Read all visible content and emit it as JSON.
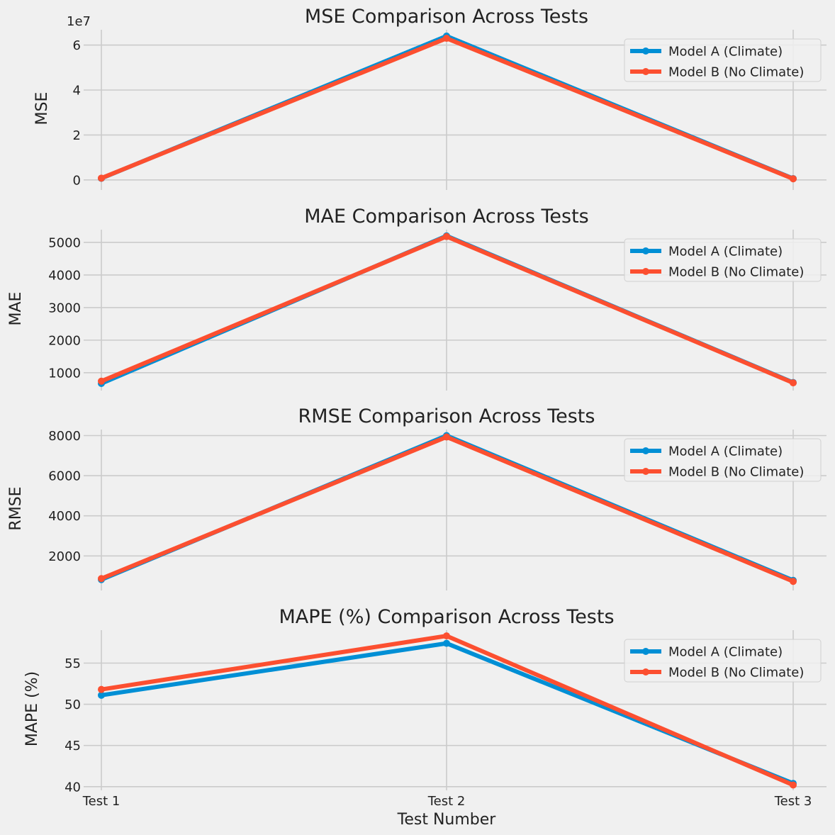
{
  "chart_data": [
    {
      "type": "line",
      "title": "MSE Comparison Across Tests",
      "ylabel": "MSE",
      "xlabel": "",
      "x": [
        "Test 1",
        "Test 2",
        "Test 3"
      ],
      "offset_label": "1e7",
      "yticks": [
        0,
        20000000,
        40000000,
        60000000
      ],
      "yticklabels": [
        "0",
        "2",
        "4",
        "6"
      ],
      "ylim": [
        -3200000,
        66800000
      ],
      "series": [
        {
          "name": "Model A (Climate)",
          "color": "#008fd5",
          "values": [
            700000,
            64000000,
            600000
          ]
        },
        {
          "name": "Model B (No Climate)",
          "color": "#fc4f30",
          "values": [
            800000,
            63000000,
            500000
          ]
        }
      ],
      "legend": "top-right",
      "grid": true
    },
    {
      "type": "line",
      "title": "MAE Comparison Across Tests",
      "ylabel": "MAE",
      "xlabel": "",
      "x": [
        "Test 1",
        "Test 2",
        "Test 3"
      ],
      "yticks": [
        1000,
        2000,
        3000,
        4000,
        5000
      ],
      "yticklabels": [
        "1000",
        "2000",
        "3000",
        "4000",
        "5000"
      ],
      "ylim": [
        540,
        5390
      ],
      "series": [
        {
          "name": "Model A (Climate)",
          "color": "#008fd5",
          "values": [
            670,
            5200,
            700
          ]
        },
        {
          "name": "Model B (No Climate)",
          "color": "#fc4f30",
          "values": [
            740,
            5180,
            690
          ]
        }
      ],
      "legend": "top-right",
      "grid": true
    },
    {
      "type": "line",
      "title": "RMSE Comparison Across Tests",
      "ylabel": "RMSE",
      "xlabel": "",
      "x": [
        "Test 1",
        "Test 2",
        "Test 3"
      ],
      "yticks": [
        2000,
        4000,
        6000,
        8000
      ],
      "yticklabels": [
        "2000",
        "4000",
        "6000",
        "8000"
      ],
      "ylim": [
        420,
        8300
      ],
      "series": [
        {
          "name": "Model A (Climate)",
          "color": "#008fd5",
          "values": [
            820,
            8000,
            780
          ]
        },
        {
          "name": "Model B (No Climate)",
          "color": "#fc4f30",
          "values": [
            870,
            7930,
            730
          ]
        }
      ],
      "legend": "top-right",
      "grid": true
    },
    {
      "type": "line",
      "title": "MAPE (%) Comparison Across Tests",
      "ylabel": "MAPE (%)",
      "xlabel": "Test Number",
      "x": [
        "Test 1",
        "Test 2",
        "Test 3"
      ],
      "yticks": [
        40,
        45,
        50,
        55
      ],
      "yticklabels": [
        "40",
        "45",
        "50",
        "55"
      ],
      "ylim": [
        39.9,
        59.0
      ],
      "series": [
        {
          "name": "Model A (Climate)",
          "color": "#008fd5",
          "values": [
            51.1,
            57.4,
            40.4
          ]
        },
        {
          "name": "Model B (No Climate)",
          "color": "#fc4f30",
          "values": [
            51.8,
            58.3,
            40.2
          ]
        }
      ],
      "legend": "top-right",
      "grid": true
    }
  ]
}
